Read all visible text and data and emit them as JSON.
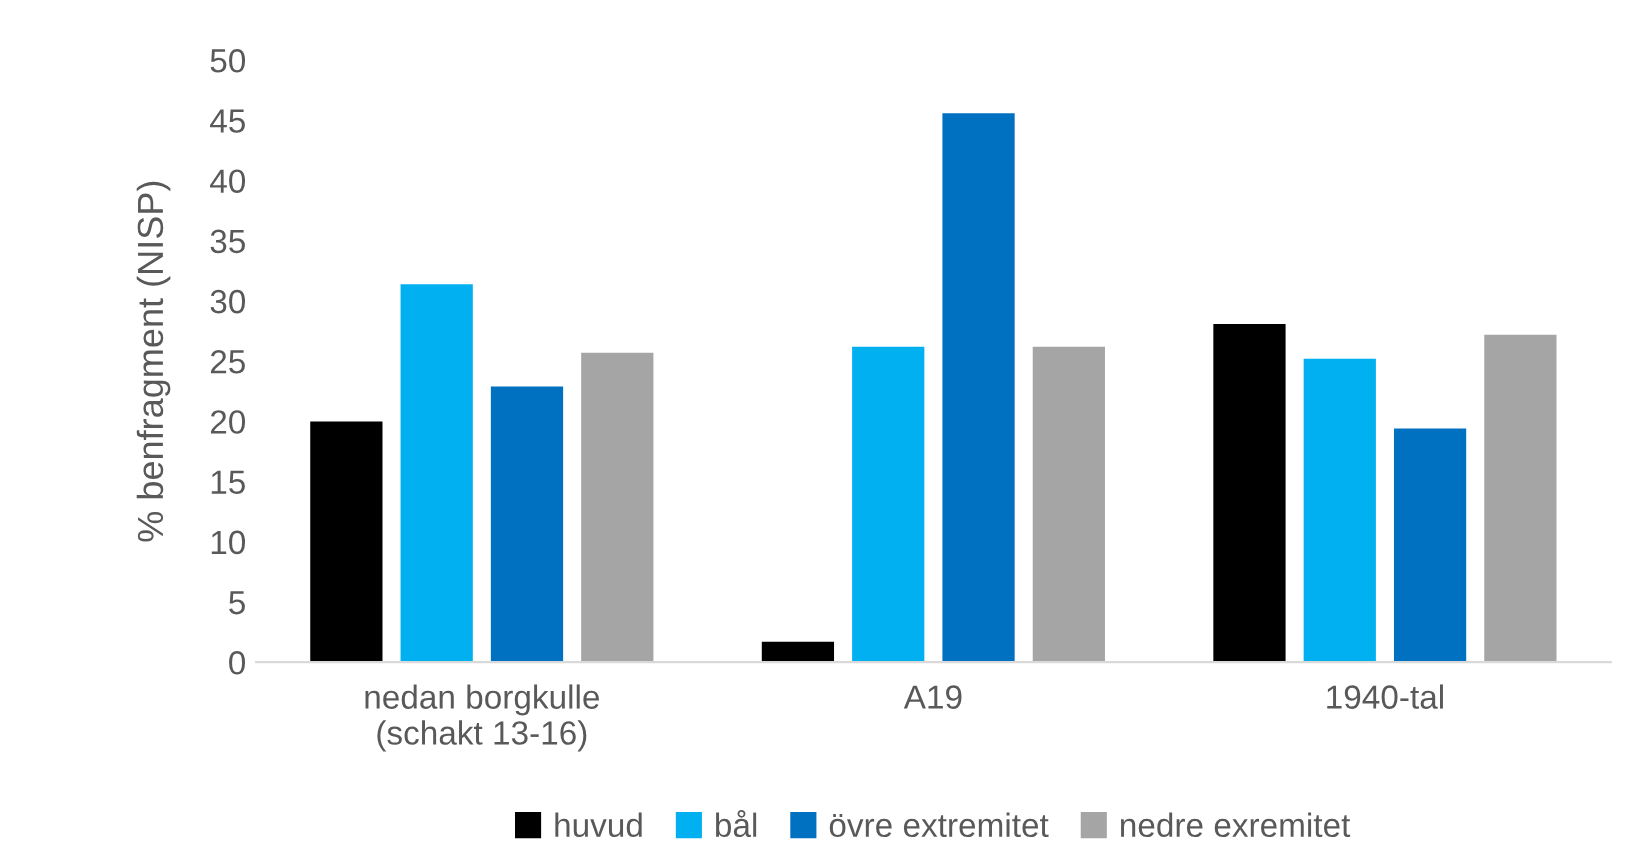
{
  "chart_data": {
    "type": "bar",
    "ylabel": "% benfragment (NISP)",
    "categories": [
      "nedan borgkulle\n(schakt 13-16)",
      "A19",
      "1940-tal"
    ],
    "series": [
      {
        "name": "huvud",
        "color": "#000000",
        "values": [
          20,
          1.7,
          28.1
        ]
      },
      {
        "name": "bål",
        "color": "#00b0f0",
        "values": [
          31.4,
          26.2,
          25.2
        ]
      },
      {
        "name": "övre extremitet",
        "color": "#0070c0",
        "values": [
          22.9,
          45.6,
          19.4
        ]
      },
      {
        "name": "nedre exremitet",
        "color": "#a5a5a5",
        "values": [
          25.7,
          26.2,
          27.2
        ]
      }
    ],
    "ylim": [
      0,
      50
    ],
    "yticks": [
      0,
      5,
      10,
      15,
      20,
      25,
      30,
      35,
      40,
      45,
      50
    ],
    "grid": false,
    "legend": "bottom"
  }
}
